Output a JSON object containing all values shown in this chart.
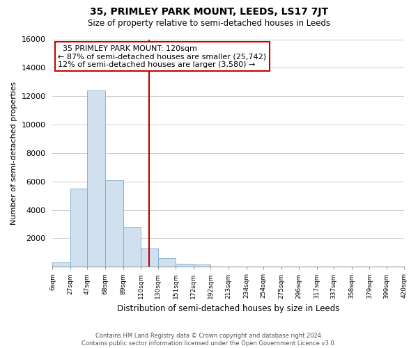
{
  "title": "35, PRIMLEY PARK MOUNT, LEEDS, LS17 7JT",
  "subtitle": "Size of property relative to semi-detached houses in Leeds",
  "xlabel": "Distribution of semi-detached houses by size in Leeds",
  "ylabel": "Number of semi-detached properties",
  "bin_edges": [
    6,
    27,
    47,
    68,
    89,
    110,
    130,
    151,
    172,
    192,
    213,
    234,
    254,
    275,
    296,
    317,
    337,
    358,
    379,
    399,
    420
  ],
  "tick_labels": [
    "6sqm",
    "27sqm",
    "47sqm",
    "68sqm",
    "89sqm",
    "110sqm",
    "130sqm",
    "151sqm",
    "172sqm",
    "192sqm",
    "213sqm",
    "234sqm",
    "254sqm",
    "275sqm",
    "296sqm",
    "317sqm",
    "337sqm",
    "358sqm",
    "379sqm",
    "399sqm",
    "420sqm"
  ],
  "bar_values": [
    300,
    5500,
    12400,
    6100,
    2800,
    1300,
    600,
    220,
    150,
    0,
    0,
    0,
    0,
    0,
    0,
    0,
    0,
    0,
    0,
    0
  ],
  "bar_color": "#d0e0ef",
  "bar_edge_color": "#7aaace",
  "vline_value": 120,
  "vline_color": "#bb0000",
  "annotation_line0": "  35 PRIMLEY PARK MOUNT: 120sqm  ",
  "annotation_line1": "← 87% of semi-detached houses are smaller (25,742)",
  "annotation_line2": "12% of semi-detached houses are larger (3,580) →",
  "annotation_box_color": "#ffffff",
  "annotation_box_edge": "#cc0000",
  "ylim": [
    0,
    16000
  ],
  "yticks": [
    0,
    2000,
    4000,
    6000,
    8000,
    10000,
    12000,
    14000,
    16000
  ],
  "footer1": "Contains HM Land Registry data © Crown copyright and database right 2024.",
  "footer2": "Contains public sector information licensed under the Open Government Licence v3.0.",
  "background_color": "#ffffff",
  "grid_color": "#cccccc"
}
